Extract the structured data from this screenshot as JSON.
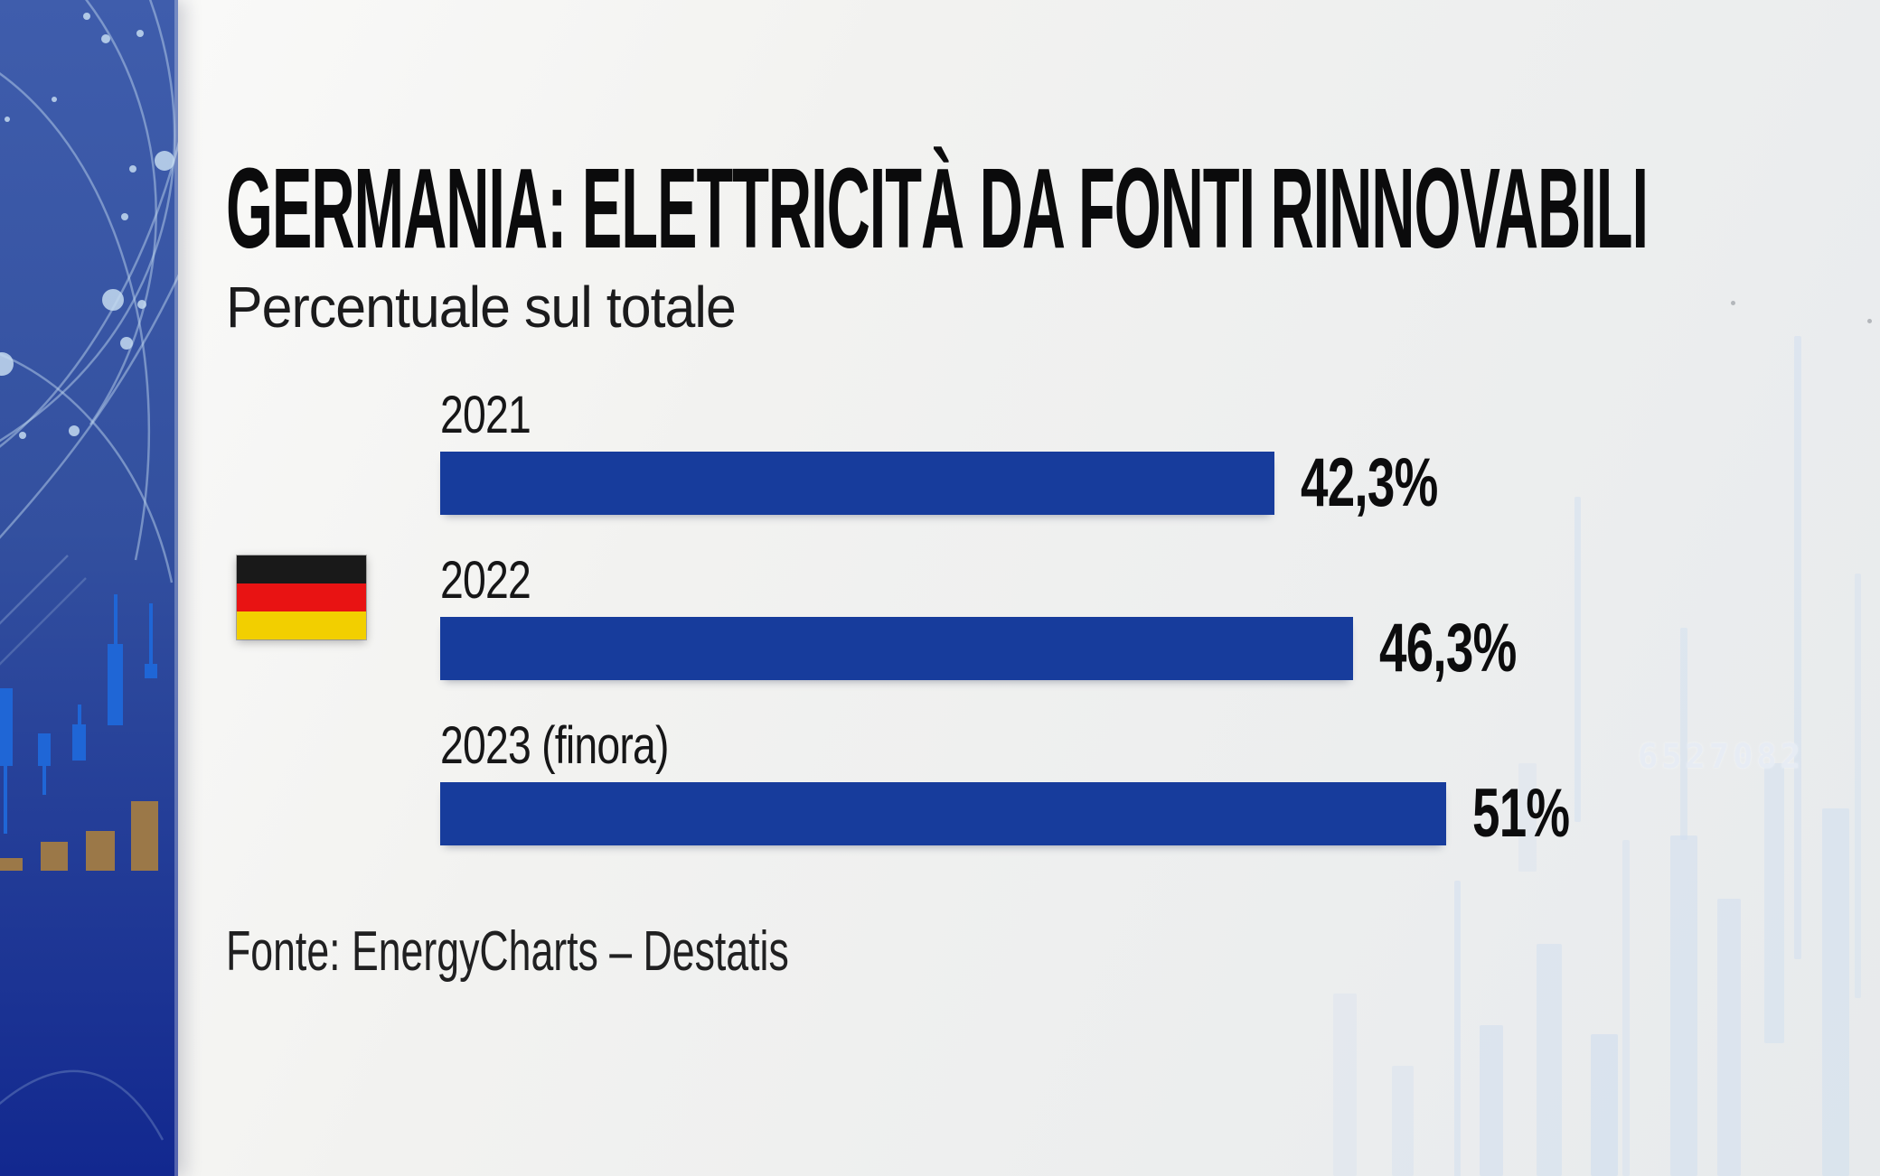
{
  "header": {
    "title": "GERMANIA: ELETTRICITÀ DA FONTI RINNOVABILI",
    "subtitle": "Percentuale sul totale"
  },
  "chart_data": {
    "type": "bar",
    "orientation": "horizontal",
    "title": "GERMANIA: ELETTRICITÀ DA FONTI RINNOVABILI",
    "subtitle": "Percentuale sul totale",
    "categories": [
      "2021",
      "2022",
      "2023 (finora)"
    ],
    "values": [
      42.3,
      46.3,
      51
    ],
    "value_labels": [
      "42,3%",
      "46,3%",
      "51%"
    ],
    "unit": "%",
    "source": "Fonte: EnergyCharts – Destatis",
    "bar_color": "#173c9c",
    "label_color": "#161617",
    "grid": false,
    "legend": false,
    "axes_hidden": true
  },
  "footer": {
    "source": "Fonte: EnergyCharts – Destatis"
  },
  "flag": {
    "country": "germania",
    "stripe_colors": [
      "#191919",
      "#e81313",
      "#f2cf00"
    ]
  },
  "background": {
    "ticker_text": "6527082",
    "sidebar_top_color": "#3f5dac",
    "sidebar_bottom_color": "#12288f",
    "sidebar_candle_color": "#1f66d6",
    "sidebar_bar_color": "#9b7848",
    "page_color": "#f0f0ee",
    "accent_blue": "#173c9c"
  }
}
